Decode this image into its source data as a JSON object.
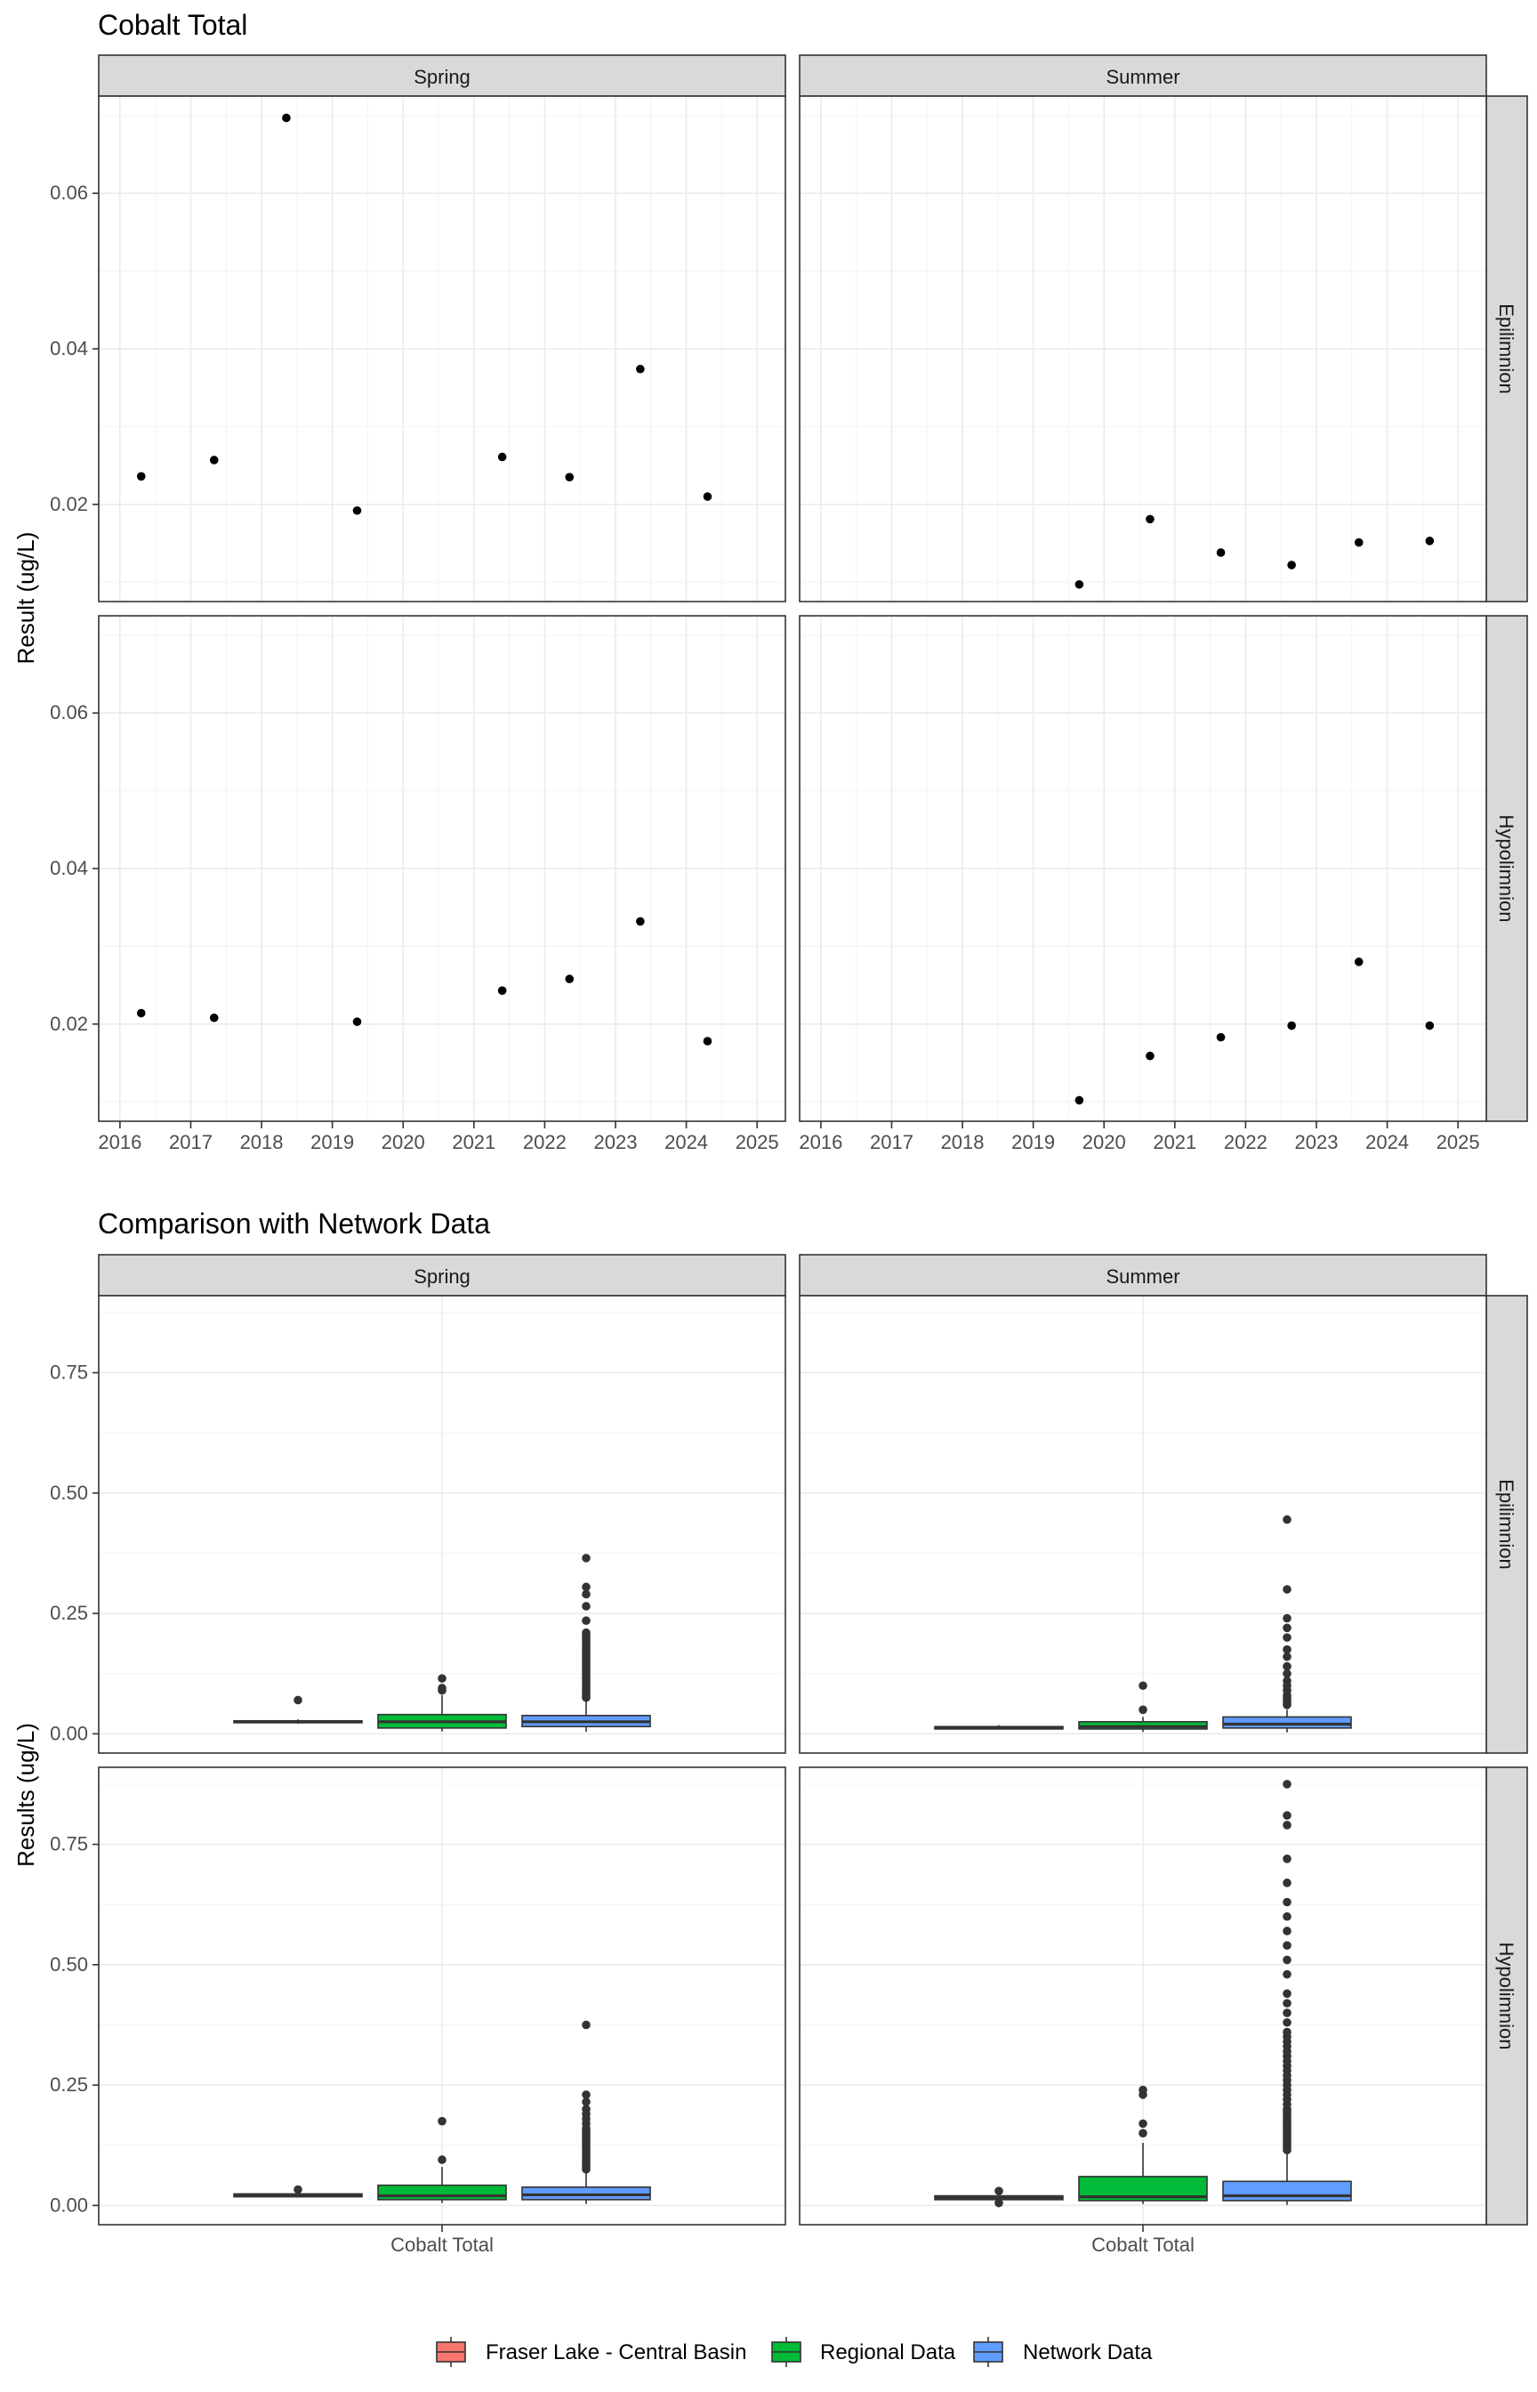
{
  "chart_data": [
    {
      "type": "scatter",
      "title": "Cobalt Total",
      "ylabel": "Result (ug/L)",
      "xlabel": "",
      "grid": true,
      "facet_cols": [
        "Spring",
        "Summer"
      ],
      "facet_rows": [
        "Epilimnion",
        "Hypolimnion"
      ],
      "xlim": [
        2015.7,
        2025.4
      ],
      "ylim": [
        0.0075,
        0.0725
      ],
      "x_ticks": [
        2016,
        2017,
        2018,
        2019,
        2020,
        2021,
        2022,
        2023,
        2024,
        2025
      ],
      "x_tick_labels": [
        "2016",
        "2017",
        "2018",
        "2019",
        "2020",
        "2021",
        "2022",
        "2023",
        "2024",
        "2025"
      ],
      "y_ticks": [
        0.02,
        0.04,
        0.06
      ],
      "y_tick_labels": [
        "0.02",
        "0.04",
        "0.06"
      ],
      "panels": [
        {
          "col": "Spring",
          "row": "Epilimnion",
          "points": [
            [
              2016.3,
              0.0236
            ],
            [
              2017.33,
              0.0257
            ],
            [
              2018.35,
              0.0697
            ],
            [
              2019.35,
              0.0192
            ],
            [
              2021.4,
              0.0261
            ],
            [
              2022.35,
              0.0235
            ],
            [
              2023.35,
              0.0374
            ],
            [
              2024.3,
              0.021
            ]
          ]
        },
        {
          "col": "Summer",
          "row": "Epilimnion",
          "points": [
            [
              2019.65,
              0.0097
            ],
            [
              2020.65,
              0.0181
            ],
            [
              2021.65,
              0.0138
            ],
            [
              2022.65,
              0.0122
            ],
            [
              2023.6,
              0.0151
            ],
            [
              2024.6,
              0.0153
            ]
          ]
        },
        {
          "col": "Spring",
          "row": "Hypolimnion",
          "points": [
            [
              2016.3,
              0.0214
            ],
            [
              2017.33,
              0.0208
            ],
            [
              2019.35,
              0.0203
            ],
            [
              2021.4,
              0.0243
            ],
            [
              2022.35,
              0.0258
            ],
            [
              2023.35,
              0.0332
            ],
            [
              2024.3,
              0.0178
            ]
          ]
        },
        {
          "col": "Summer",
          "row": "Hypolimnion",
          "points": [
            [
              2019.65,
              0.0102
            ],
            [
              2020.65,
              0.0159
            ],
            [
              2021.65,
              0.0183
            ],
            [
              2022.65,
              0.0198
            ],
            [
              2023.6,
              0.028
            ],
            [
              2024.6,
              0.0198
            ]
          ]
        }
      ]
    },
    {
      "type": "box",
      "title": "Comparison with Network Data",
      "ylabel": "Results (ug/L)",
      "xlabel": "",
      "category": "Cobalt Total",
      "grid": true,
      "facet_cols": [
        "Spring",
        "Summer"
      ],
      "facet_rows": [
        "Epilimnion",
        "Hypolimnion"
      ],
      "ylim": [
        -0.04,
        0.91
      ],
      "y_ticks": [
        0.0,
        0.25,
        0.5,
        0.75
      ],
      "y_tick_labels": [
        "0.00",
        "0.25",
        "0.50",
        "0.75"
      ],
      "groups": [
        "Fraser Lake - Central Basin",
        "Regional Data",
        "Network Data"
      ],
      "group_colors": [
        "#F8766D",
        "#00BA38",
        "#619CFF"
      ],
      "legend_position": "bottom",
      "panels": [
        {
          "col": "Spring",
          "row": "Epilimnion",
          "boxes": [
            {
              "group": "Fraser Lake - Central Basin",
              "q1": 0.023,
              "median": 0.025,
              "q3": 0.027,
              "whisker_low": 0.021,
              "whisker_high": 0.03,
              "outliers": [
                0.07
              ]
            },
            {
              "group": "Regional Data",
              "q1": 0.012,
              "median": 0.025,
              "q3": 0.04,
              "whisker_low": 0.005,
              "whisker_high": 0.08,
              "outliers": [
                0.09,
                0.095,
                0.115
              ]
            },
            {
              "group": "Network Data",
              "q1": 0.015,
              "median": 0.025,
              "q3": 0.038,
              "whisker_low": 0.004,
              "whisker_high": 0.07,
              "outliers": [
                0.075,
                0.08,
                0.085,
                0.09,
                0.095,
                0.1,
                0.105,
                0.11,
                0.115,
                0.12,
                0.125,
                0.13,
                0.135,
                0.14,
                0.145,
                0.15,
                0.155,
                0.16,
                0.165,
                0.17,
                0.175,
                0.18,
                0.185,
                0.19,
                0.195,
                0.2,
                0.205,
                0.21,
                0.235,
                0.265,
                0.29,
                0.305,
                0.365
              ]
            }
          ]
        },
        {
          "col": "Summer",
          "row": "Epilimnion",
          "boxes": [
            {
              "group": "Fraser Lake - Central Basin",
              "q1": 0.01,
              "median": 0.012,
              "q3": 0.015,
              "whisker_low": 0.009,
              "whisker_high": 0.018,
              "outliers": []
            },
            {
              "group": "Regional Data",
              "q1": 0.01,
              "median": 0.015,
              "q3": 0.025,
              "whisker_low": 0.004,
              "whisker_high": 0.035,
              "outliers": [
                0.05,
                0.1
              ]
            },
            {
              "group": "Network Data",
              "q1": 0.012,
              "median": 0.02,
              "q3": 0.035,
              "whisker_low": 0.003,
              "whisker_high": 0.05,
              "outliers": [
                0.06,
                0.065,
                0.07,
                0.075,
                0.08,
                0.09,
                0.1,
                0.11,
                0.125,
                0.14,
                0.16,
                0.175,
                0.2,
                0.22,
                0.24,
                0.3,
                0.445
              ]
            }
          ]
        },
        {
          "col": "Spring",
          "row": "Hypolimnion",
          "boxes": [
            {
              "group": "Fraser Lake - Central Basin",
              "q1": 0.018,
              "median": 0.021,
              "q3": 0.024,
              "whisker_low": 0.017,
              "whisker_high": 0.028,
              "outliers": [
                0.033
              ]
            },
            {
              "group": "Regional Data",
              "q1": 0.012,
              "median": 0.02,
              "q3": 0.042,
              "whisker_low": 0.005,
              "whisker_high": 0.08,
              "outliers": [
                0.095,
                0.175
              ]
            },
            {
              "group": "Network Data",
              "q1": 0.012,
              "median": 0.022,
              "q3": 0.038,
              "whisker_low": 0.003,
              "whisker_high": 0.07,
              "outliers": [
                0.075,
                0.08,
                0.085,
                0.09,
                0.095,
                0.1,
                0.105,
                0.11,
                0.115,
                0.12,
                0.125,
                0.13,
                0.135,
                0.14,
                0.145,
                0.15,
                0.155,
                0.16,
                0.17,
                0.18,
                0.19,
                0.2,
                0.215,
                0.23,
                0.375
              ]
            }
          ]
        },
        {
          "col": "Summer",
          "row": "Hypolimnion",
          "boxes": [
            {
              "group": "Fraser Lake - Central Basin",
              "q1": 0.012,
              "median": 0.016,
              "q3": 0.02,
              "whisker_low": 0.01,
              "whisker_high": 0.022,
              "outliers": [
                0.005,
                0.03
              ]
            },
            {
              "group": "Regional Data",
              "q1": 0.01,
              "median": 0.018,
              "q3": 0.06,
              "whisker_low": 0.003,
              "whisker_high": 0.13,
              "outliers": [
                0.15,
                0.17,
                0.23,
                0.24
              ]
            },
            {
              "group": "Network Data",
              "q1": 0.01,
              "median": 0.02,
              "q3": 0.05,
              "whisker_low": 0.001,
              "whisker_high": 0.11,
              "outliers": [
                0.115,
                0.12,
                0.125,
                0.13,
                0.135,
                0.14,
                0.145,
                0.15,
                0.155,
                0.16,
                0.165,
                0.17,
                0.175,
                0.18,
                0.185,
                0.19,
                0.195,
                0.2,
                0.21,
                0.22,
                0.23,
                0.24,
                0.25,
                0.26,
                0.27,
                0.28,
                0.29,
                0.3,
                0.31,
                0.32,
                0.33,
                0.34,
                0.35,
                0.36,
                0.38,
                0.4,
                0.42,
                0.44,
                0.48,
                0.51,
                0.54,
                0.57,
                0.6,
                0.63,
                0.67,
                0.72,
                0.79,
                0.81,
                0.875
              ]
            }
          ]
        }
      ]
    }
  ]
}
